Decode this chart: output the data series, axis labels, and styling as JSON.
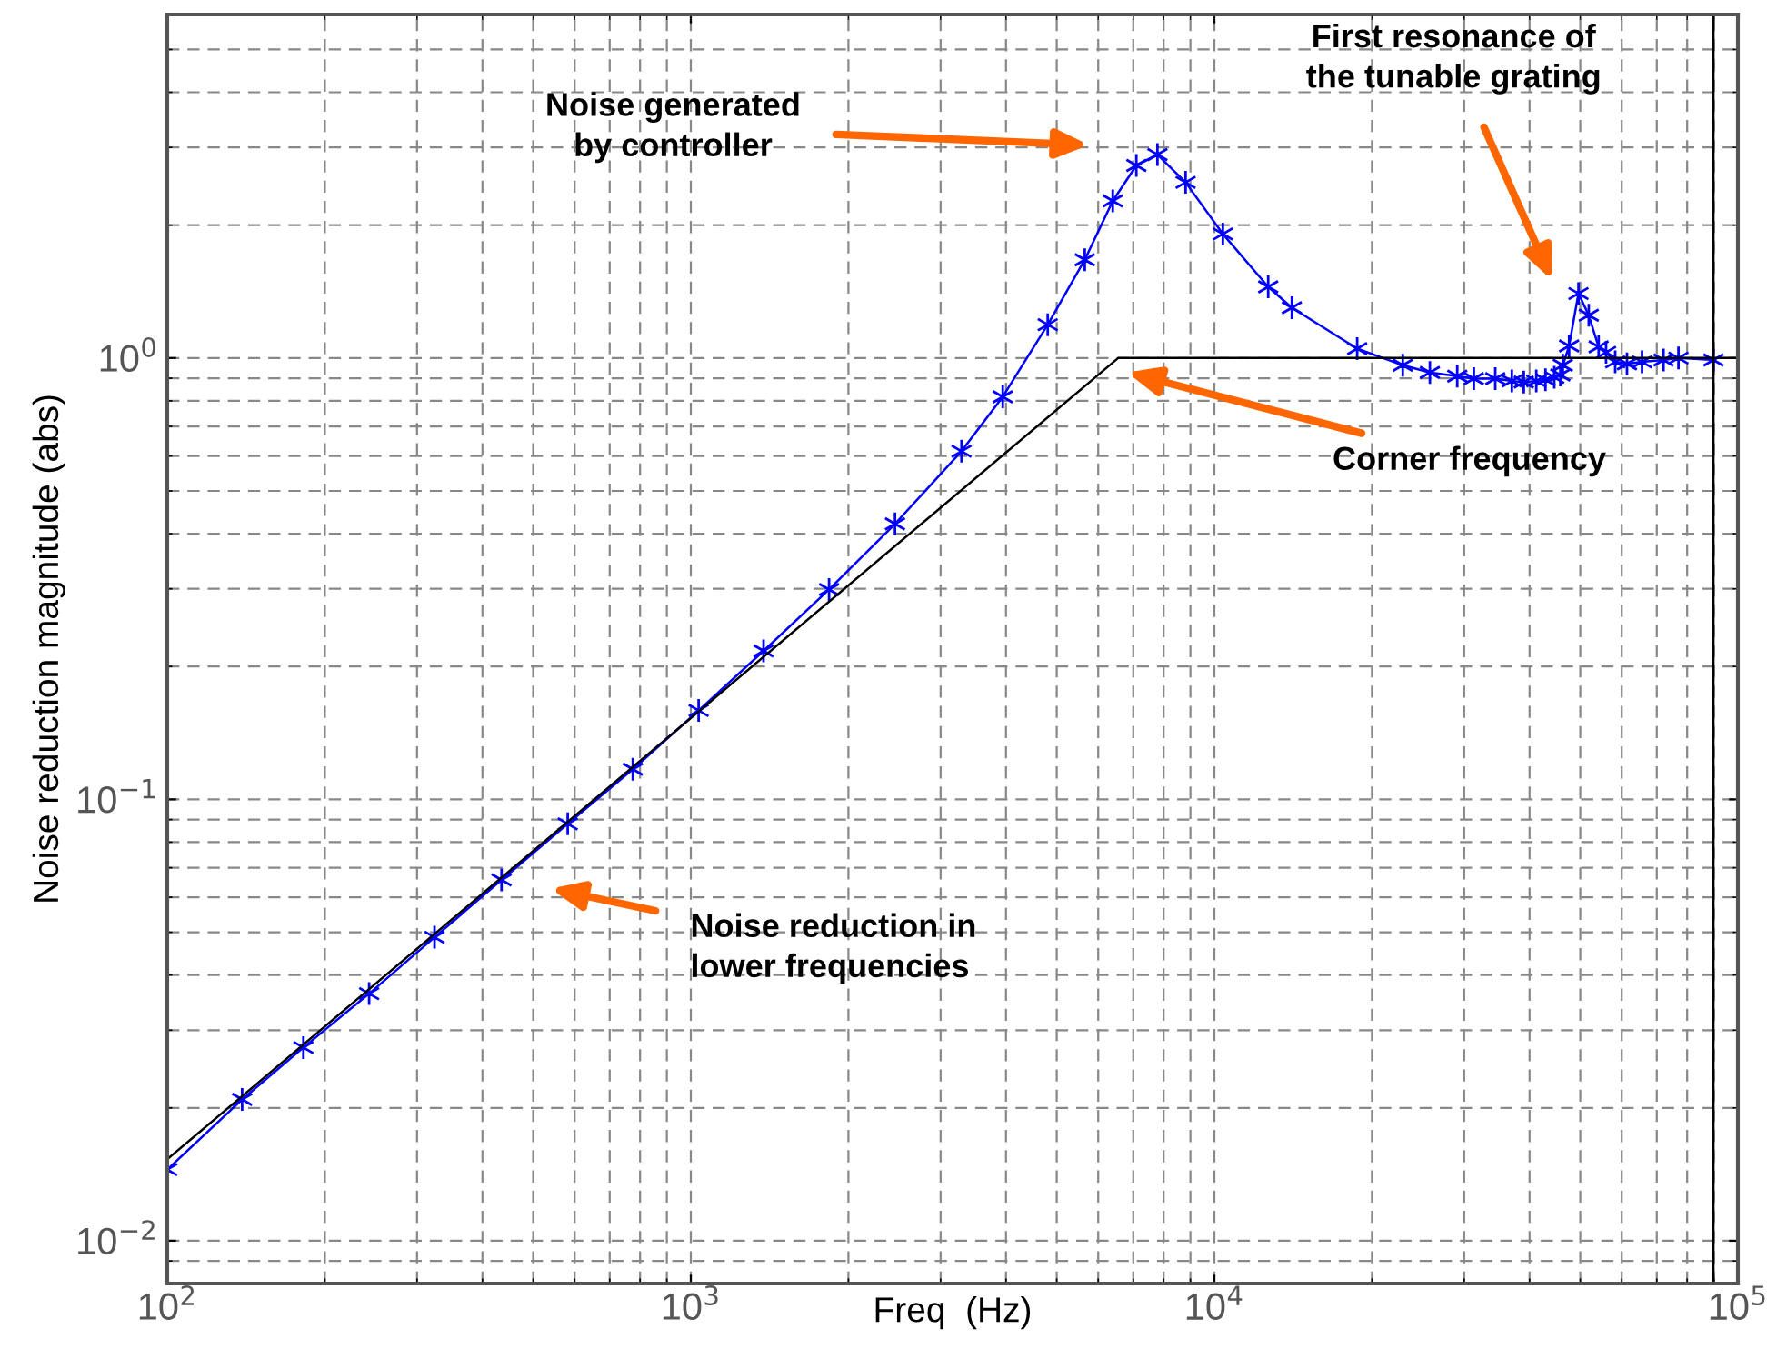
{
  "chart_data": {
    "type": "line",
    "xlabel": "Freq  (Hz)",
    "ylabel": "Noise reduction magnitude (abs)",
    "log": "xy",
    "grid": true,
    "legend": false,
    "xlim": [
      100,
      100000
    ],
    "ylim": [
      0.008,
      6
    ],
    "xticks": [
      {
        "value": 100,
        "label": "10$^{2}$"
      },
      {
        "value": 1000,
        "label": "10$^{3}$"
      },
      {
        "value": 10000,
        "label": "10$^{4}$"
      },
      {
        "value": 100000,
        "label": "10$^{5}$"
      }
    ],
    "yticks": [
      {
        "value": 0.01,
        "label": "10$^{−2}$"
      },
      {
        "value": 0.1,
        "label": "10$^{−1}$"
      },
      {
        "value": 1,
        "label": "10$^{0}$"
      }
    ],
    "series": [
      {
        "color": "#0000ff",
        "marker": "cross",
        "line_style": "solid",
        "x": [
          100,
          139,
          182,
          243,
          324,
          435,
          582,
          775,
          1035,
          1377,
          1837,
          2455,
          3289,
          3943,
          4806,
          5656,
          6397,
          7096,
          7785,
          8812,
          10380,
          12670,
          14060,
          18740,
          22900,
          25800,
          29100,
          31300,
          34400,
          37000,
          39000,
          41200,
          42900,
          44600,
          45800,
          46300,
          47600,
          49600,
          51900,
          54200,
          56000,
          58300,
          61400,
          65600,
          72100,
          77000,
          89800
        ],
        "values": [
          0.0145,
          0.0209,
          0.0274,
          0.0363,
          0.0487,
          0.0657,
          0.088,
          0.117,
          0.159,
          0.217,
          0.299,
          0.421,
          0.615,
          0.817,
          1.19,
          1.67,
          2.27,
          2.73,
          2.89,
          2.5,
          1.91,
          1.45,
          1.3,
          1.05,
          0.963,
          0.927,
          0.91,
          0.898,
          0.898,
          0.887,
          0.882,
          0.887,
          0.893,
          0.904,
          0.915,
          0.963,
          1.065,
          1.4,
          1.25,
          1.06,
          1.03,
          0.98,
          0.97,
          0.98,
          0.99,
          1.0,
          0.99
        ]
      },
      {
        "color": "#000000",
        "marker": "none",
        "line_style": "solid",
        "x": [
          100,
          6550,
          100000
        ],
        "values": [
          0.0153,
          1,
          1
        ]
      },
      {
        "color": "#000000",
        "marker": "none",
        "line_style": "solid",
        "x": [
          89800,
          89800
        ],
        "values": [
          0.008,
          6
        ]
      }
    ],
    "annotations": [
      "Noise generated\nby controller",
      "First resonance of\nthe tunable grating",
      "Corner frequency",
      "Noise reduction in\nlower frequencies"
    ]
  }
}
